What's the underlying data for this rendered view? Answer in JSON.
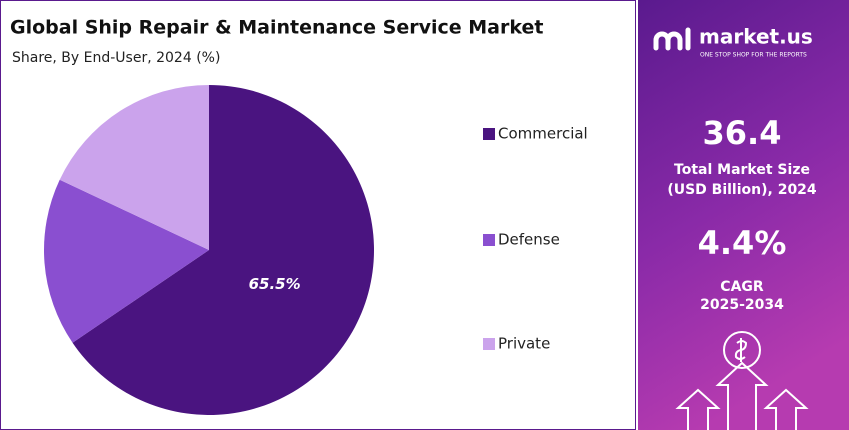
{
  "chart_data": {
    "type": "pie",
    "title": "Global Ship Repair & Maintenance Service Market",
    "subtitle": "Share, By End-User, 2024 (%)",
    "categories": [
      "Commercial",
      "Defense",
      "Private"
    ],
    "values": [
      65.5,
      16.5,
      18.0
    ],
    "value_labels": [
      "65.5%",
      null,
      null
    ],
    "colors": [
      "#4a1480",
      "#8a4fd0",
      "#cba3ec"
    ],
    "legend": "right"
  },
  "panel": {
    "brand": "market.us",
    "tagline": "ONE STOP SHOP FOR THE REPORTS",
    "market_size": "36.4",
    "market_size_label": [
      "Total Market Size",
      "(USD Billion), 2024"
    ],
    "cagr": "4.4%",
    "cagr_label": [
      "CAGR",
      "2025-2034"
    ]
  }
}
